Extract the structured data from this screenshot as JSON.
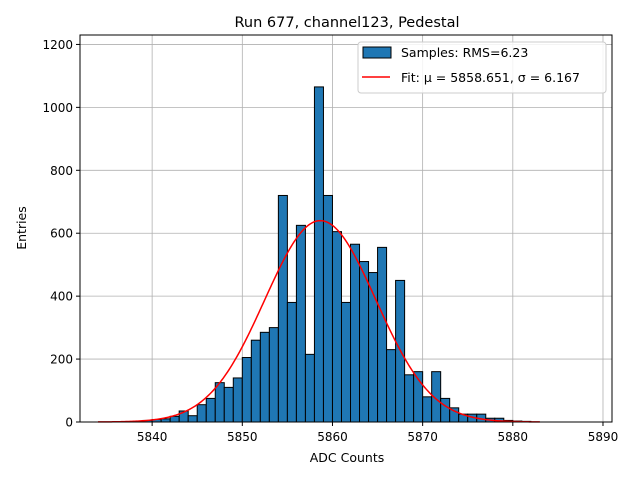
{
  "chart_data": {
    "type": "bar",
    "title": "Run 677, channel123, Pedestal",
    "xlabel": "ADC Counts",
    "ylabel": "Entries",
    "xlim": [
      5832,
      5891
    ],
    "ylim": [
      0,
      1230
    ],
    "x_ticks": [
      5840,
      5850,
      5860,
      5870,
      5880,
      5890
    ],
    "y_ticks": [
      0,
      200,
      400,
      600,
      800,
      1000,
      1200
    ],
    "grid": true,
    "legend_position": "top-right",
    "colors": {
      "bar": "#1f77b4",
      "bar_edge": "#000000",
      "fit": "#ff0000",
      "grid": "#b0b0b0"
    },
    "histogram": {
      "name": "Samples: RMS=6.23",
      "bin_start": 5834,
      "bin_width": 1,
      "values": [
        0,
        0,
        0,
        0,
        3,
        5,
        8,
        10,
        18,
        35,
        20,
        55,
        75,
        125,
        110,
        140,
        205,
        260,
        285,
        300,
        720,
        380,
        625,
        215,
        1065,
        720,
        605,
        380,
        565,
        510,
        475,
        555,
        230,
        450,
        150,
        160,
        80,
        160,
        75,
        45,
        25,
        25,
        25,
        12,
        12,
        5,
        3,
        2,
        0
      ]
    },
    "fit": {
      "name": "Fit: μ = 5858.651, σ = 6.167",
      "mu": 5858.651,
      "sigma": 6.167,
      "amplitude": 640,
      "x_range": [
        5834,
        5883
      ]
    }
  }
}
